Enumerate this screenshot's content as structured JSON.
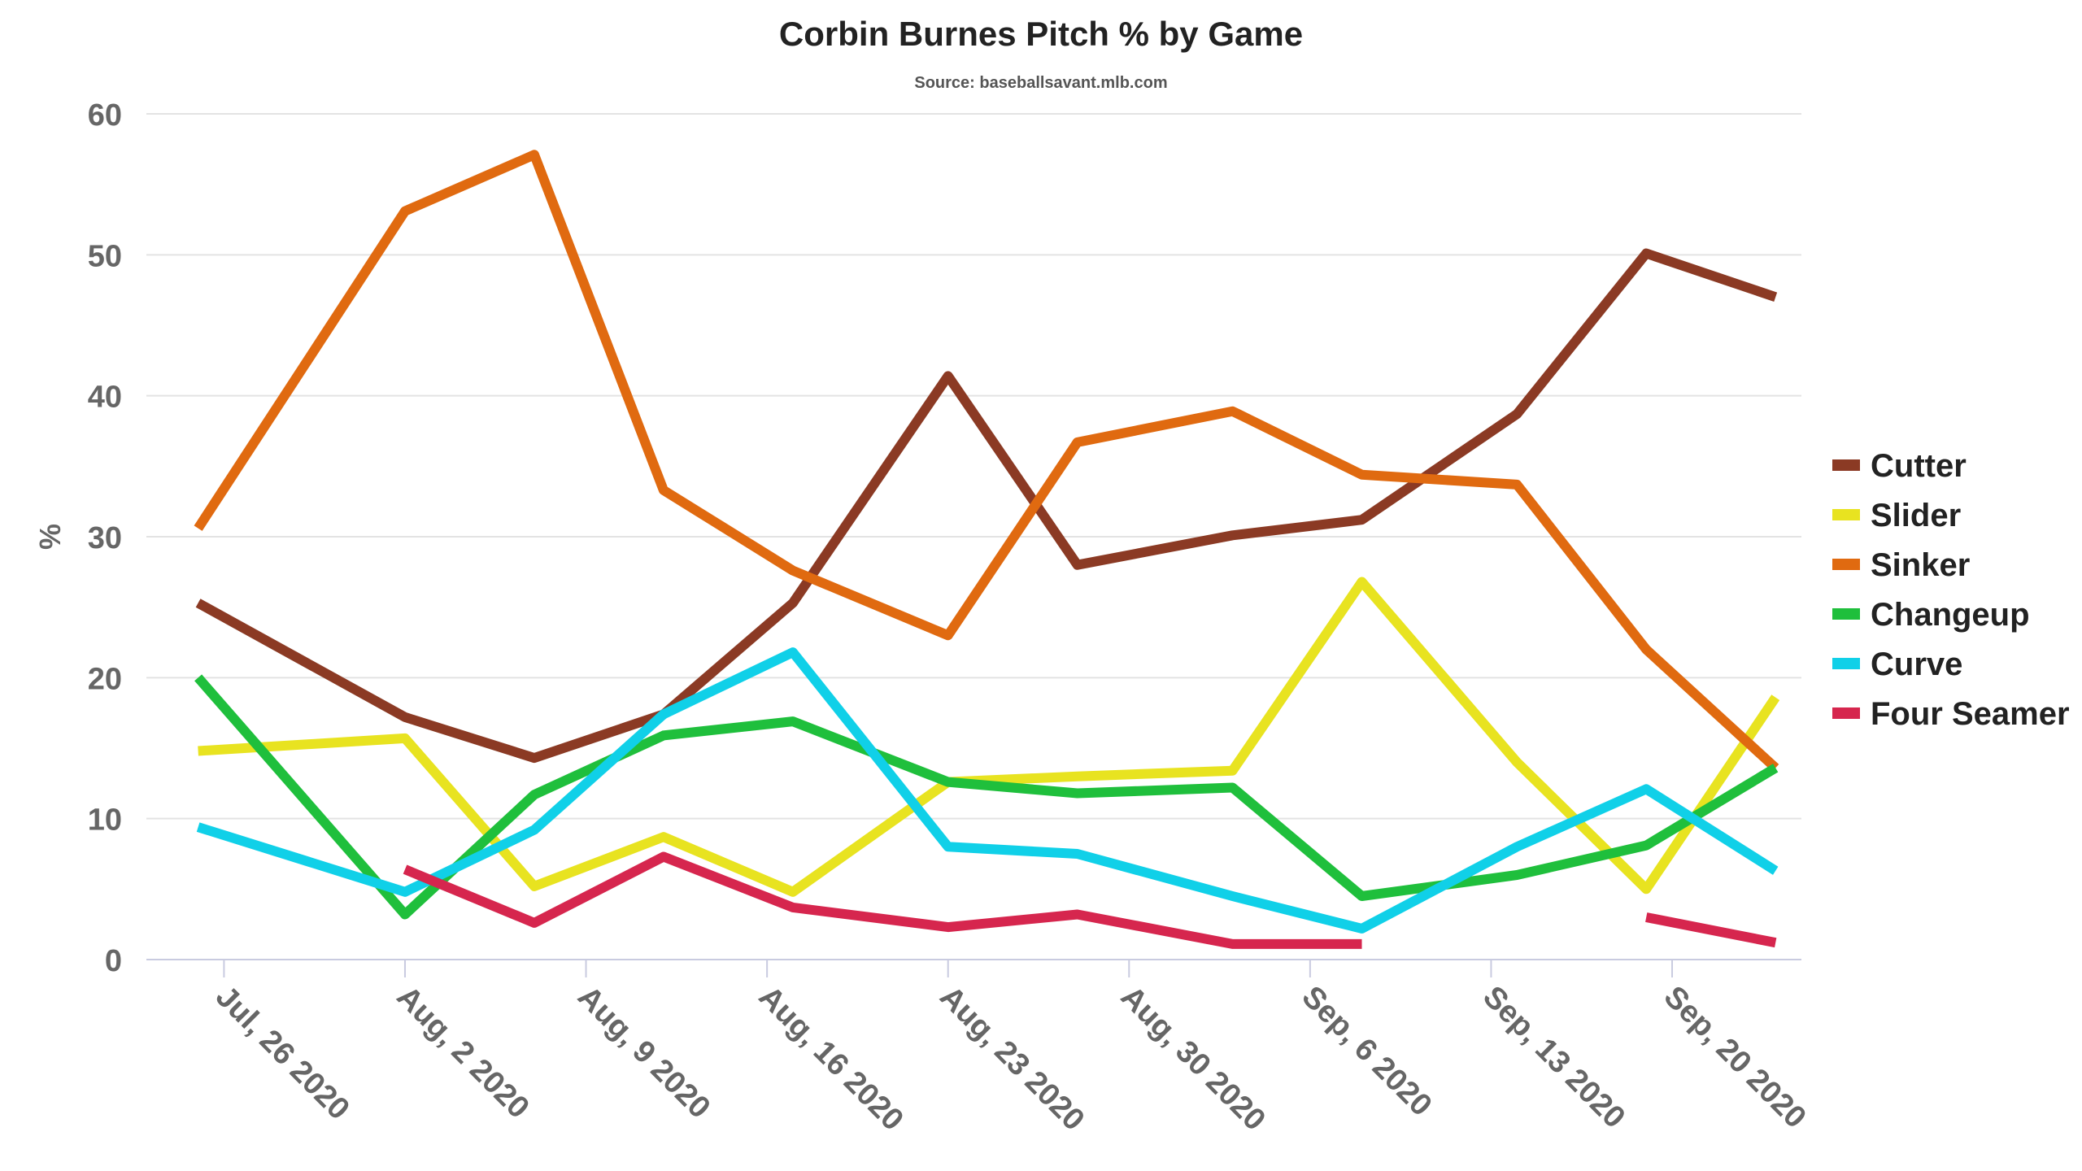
{
  "chart_data": {
    "type": "line",
    "title": "Corbin Burnes Pitch % by Game",
    "subtitle": "Source: baseballsavant.mlb.com",
    "xlabel": "",
    "ylabel": "%",
    "ylim": [
      0,
      60
    ],
    "yticks": [
      "0",
      "10",
      "20",
      "30",
      "40",
      "50",
      "60"
    ],
    "xlim": [
      "2020-07-26",
      "2020-09-22"
    ],
    "xticks": [
      {
        "label": "Jul, 26 2020",
        "date": "2020-07-26"
      },
      {
        "label": "Aug, 2 2020",
        "date": "2020-08-02"
      },
      {
        "label": "Aug, 9 2020",
        "date": "2020-08-09"
      },
      {
        "label": "Aug, 16 2020",
        "date": "2020-08-16"
      },
      {
        "label": "Aug, 23 2020",
        "date": "2020-08-23"
      },
      {
        "label": "Aug, 30 2020",
        "date": "2020-08-30"
      },
      {
        "label": "Sep, 6 2020",
        "date": "2020-09-06"
      },
      {
        "label": "Sep, 13 2020",
        "date": "2020-09-13"
      },
      {
        "label": "Sep, 20 2020",
        "date": "2020-09-20"
      }
    ],
    "grid": true,
    "legend_position": "right",
    "series": [
      {
        "name": "Cutter",
        "color": "#8b3a24",
        "points": [
          {
            "x": "2020-07-25",
            "y": 25.3
          },
          {
            "x": "2020-08-02",
            "y": 17.2
          },
          {
            "x": "2020-08-07",
            "y": 14.3
          },
          {
            "x": "2020-08-12",
            "y": 17.4
          },
          {
            "x": "2020-08-17",
            "y": 25.3
          },
          {
            "x": "2020-08-23",
            "y": 41.4
          },
          {
            "x": "2020-08-28",
            "y": 28.0
          },
          {
            "x": "2020-09-03",
            "y": 30.1
          },
          {
            "x": "2020-09-08",
            "y": 31.2
          },
          {
            "x": "2020-09-14",
            "y": 38.7
          },
          {
            "x": "2020-09-19",
            "y": 50.1
          },
          {
            "x": "2020-09-24",
            "y": 47.0
          }
        ]
      },
      {
        "name": "Slider",
        "color": "#e8e320",
        "points": [
          {
            "x": "2020-07-25",
            "y": 14.8
          },
          {
            "x": "2020-08-02",
            "y": 15.7
          },
          {
            "x": "2020-08-07",
            "y": 5.2
          },
          {
            "x": "2020-08-12",
            "y": 8.7
          },
          {
            "x": "2020-08-17",
            "y": 4.8
          },
          {
            "x": "2020-08-23",
            "y": 12.6
          },
          {
            "x": "2020-08-28",
            "y": 13.0
          },
          {
            "x": "2020-09-03",
            "y": 13.4
          },
          {
            "x": "2020-09-08",
            "y": 26.8
          },
          {
            "x": "2020-09-14",
            "y": 14.0
          },
          {
            "x": "2020-09-19",
            "y": 5.0
          },
          {
            "x": "2020-09-24",
            "y": 18.6
          }
        ]
      },
      {
        "name": "Sinker",
        "color": "#e06a10",
        "points": [
          {
            "x": "2020-07-25",
            "y": 30.6
          },
          {
            "x": "2020-08-02",
            "y": 53.1
          },
          {
            "x": "2020-08-07",
            "y": 57.1
          },
          {
            "x": "2020-08-12",
            "y": 33.3
          },
          {
            "x": "2020-08-17",
            "y": 27.6
          },
          {
            "x": "2020-08-23",
            "y": 23.0
          },
          {
            "x": "2020-08-28",
            "y": 36.7
          },
          {
            "x": "2020-09-03",
            "y": 38.9
          },
          {
            "x": "2020-09-08",
            "y": 34.4
          },
          {
            "x": "2020-09-14",
            "y": 33.7
          },
          {
            "x": "2020-09-19",
            "y": 22.0
          },
          {
            "x": "2020-09-24",
            "y": 13.6
          }
        ]
      },
      {
        "name": "Changeup",
        "color": "#1fbf3c",
        "points": [
          {
            "x": "2020-07-25",
            "y": 20.0
          },
          {
            "x": "2020-08-02",
            "y": 3.2
          },
          {
            "x": "2020-08-07",
            "y": 11.7
          },
          {
            "x": "2020-08-12",
            "y": 15.9
          },
          {
            "x": "2020-08-17",
            "y": 16.9
          },
          {
            "x": "2020-08-23",
            "y": 12.6
          },
          {
            "x": "2020-08-28",
            "y": 11.8
          },
          {
            "x": "2020-09-03",
            "y": 12.2
          },
          {
            "x": "2020-09-08",
            "y": 4.5
          },
          {
            "x": "2020-09-14",
            "y": 6.0
          },
          {
            "x": "2020-09-19",
            "y": 8.1
          },
          {
            "x": "2020-09-24",
            "y": 13.6
          }
        ]
      },
      {
        "name": "Curve",
        "color": "#10d0e8",
        "points": [
          {
            "x": "2020-07-25",
            "y": 9.4
          },
          {
            "x": "2020-08-02",
            "y": 4.8
          },
          {
            "x": "2020-08-07",
            "y": 9.2
          },
          {
            "x": "2020-08-12",
            "y": 17.4
          },
          {
            "x": "2020-08-17",
            "y": 21.8
          },
          {
            "x": "2020-08-23",
            "y": 8.0
          },
          {
            "x": "2020-08-28",
            "y": 7.5
          },
          {
            "x": "2020-09-03",
            "y": 4.5
          },
          {
            "x": "2020-09-08",
            "y": 2.2
          },
          {
            "x": "2020-09-14",
            "y": 8.0
          },
          {
            "x": "2020-09-19",
            "y": 12.1
          },
          {
            "x": "2020-09-24",
            "y": 6.3
          }
        ]
      },
      {
        "name": "Four Seamer",
        "color": "#d6264e",
        "points": [
          {
            "x": "2020-08-02",
            "y": 6.4
          },
          {
            "x": "2020-08-07",
            "y": 2.6
          },
          {
            "x": "2020-08-12",
            "y": 7.3
          },
          {
            "x": "2020-08-17",
            "y": 3.7
          },
          {
            "x": "2020-08-23",
            "y": 2.3
          },
          {
            "x": "2020-08-28",
            "y": 3.2
          },
          {
            "x": "2020-09-03",
            "y": 1.1
          },
          {
            "x": "2020-09-08",
            "y": 1.1
          },
          {
            "x": "2020-09-19",
            "y": 3.0
          },
          {
            "x": "2020-09-24",
            "y": 1.2
          }
        ]
      }
    ]
  }
}
